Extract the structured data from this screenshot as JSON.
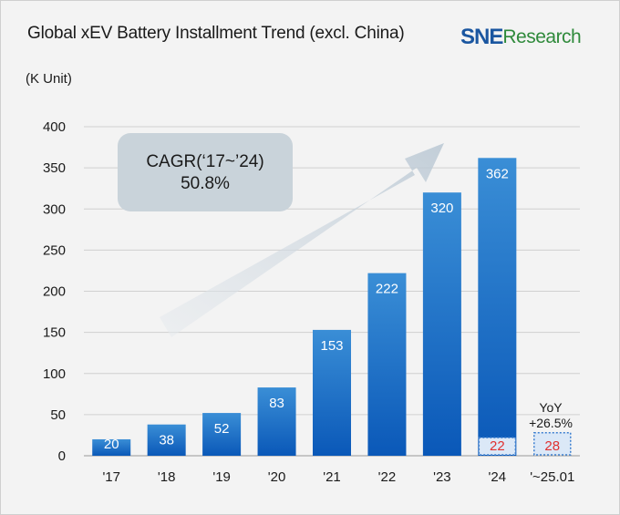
{
  "title": "Global xEV Battery Installment Trend (excl. China)",
  "logo": {
    "mark": "SNE",
    "word": "Research"
  },
  "unit_label": "(K Unit)",
  "cagr": {
    "line1": "CAGR(‘17~’24)",
    "line2": "50.8%"
  },
  "yoy": {
    "line1": "YoY",
    "line2": "+26.5%"
  },
  "colors": {
    "bar_top": "#3a8ed6",
    "bar_bottom": "#0a58b8",
    "highlight_text": "#e03030",
    "highlight_border": "#3d7fd0",
    "highlight_fill": "#dbe8f7"
  },
  "chart_data": {
    "type": "bar",
    "categories": [
      "'17",
      "'18",
      "'19",
      "'20",
      "'21",
      "'22",
      "'23",
      "'24",
      "'~25.01"
    ],
    "values": [
      20,
      38,
      52,
      83,
      153,
      222,
      320,
      362,
      null
    ],
    "highlighted": [
      null,
      null,
      null,
      null,
      null,
      null,
      null,
      22,
      28
    ],
    "yticks": [
      0,
      50,
      100,
      150,
      200,
      250,
      300,
      350,
      400
    ],
    "ylim": [
      0,
      400
    ],
    "ylabel": "(K Unit)",
    "grid": true
  }
}
